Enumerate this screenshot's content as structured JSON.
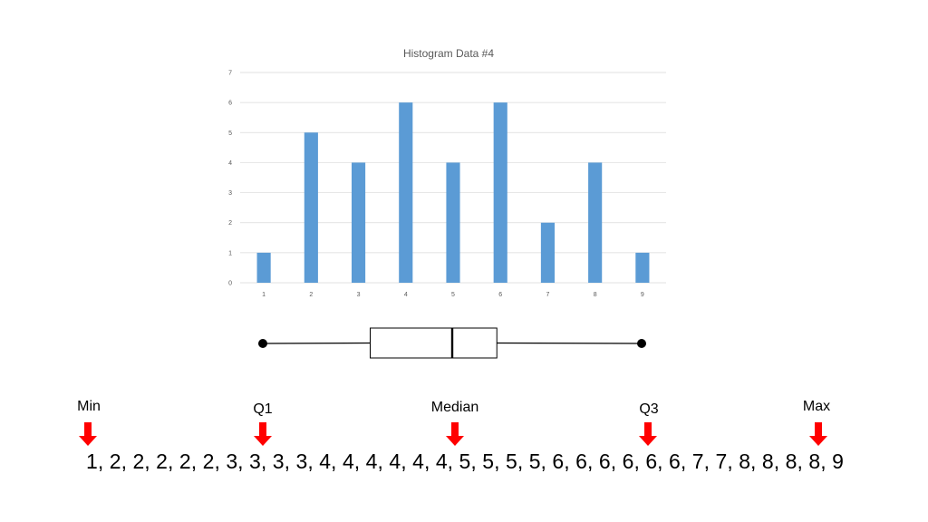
{
  "chart_data": [
    {
      "type": "bar",
      "title": "Histogram Data #4",
      "categories": [
        "1",
        "2",
        "3",
        "4",
        "5",
        "6",
        "7",
        "8",
        "9"
      ],
      "values": [
        1,
        5,
        4,
        6,
        4,
        6,
        2,
        4,
        1
      ],
      "y_ticks": [
        "0",
        "1",
        "2",
        "3",
        "4",
        "5",
        "6",
        "7"
      ],
      "ylim": [
        0,
        7
      ],
      "xlabel": "",
      "ylabel": "",
      "grid": true,
      "colors": {
        "bar": "#5b9bd5",
        "gridline": "#d9d9d9"
      }
    },
    {
      "type": "boxplot",
      "min": 1,
      "q1": 3,
      "median": 5,
      "q3": 6,
      "max": 9
    }
  ],
  "stat_labels": {
    "min": "Min",
    "q1": "Q1",
    "median": "Median",
    "q3": "Q3",
    "max": "Max"
  },
  "data_sequence": "1, 2, 2, 2, 2, 2, 3, 3, 3, 3, 4, 4, 4, 4, 4, 4, 5, 5, 5, 5, 6, 6, 6, 6, 6, 6, 7, 7, 8, 8, 8, 8, 9",
  "arrow_color": "#ff0000"
}
